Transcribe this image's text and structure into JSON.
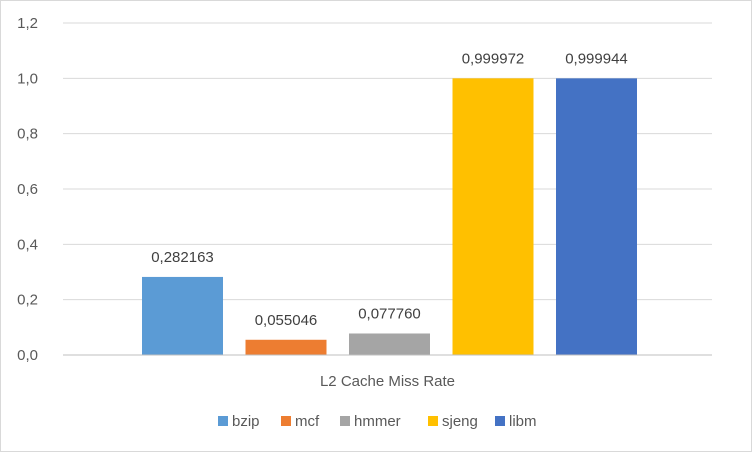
{
  "chart_data": {
    "type": "bar",
    "title": "",
    "xlabel": "",
    "ylabel": "",
    "categories": [
      "L2 Cache Miss Rate"
    ],
    "series": [
      {
        "name": "bzip",
        "values": [
          0.282163
        ],
        "label": "0,282163",
        "color": "#5B9BD5"
      },
      {
        "name": "mcf",
        "values": [
          0.055046
        ],
        "label": "0,055046",
        "color": "#ED7D31"
      },
      {
        "name": "hmmer",
        "values": [
          0.07776
        ],
        "label": "0,077760",
        "color": "#A5A5A5"
      },
      {
        "name": "sjeng",
        "values": [
          0.999972
        ],
        "label": "0,999972",
        "color": "#FFC000"
      },
      {
        "name": "libm",
        "values": [
          0.999944
        ],
        "label": "0,999944",
        "color": "#4472C4"
      }
    ],
    "ylim": [
      0,
      1.2
    ],
    "yticks": [
      {
        "value": 0.0,
        "label": "0,0"
      },
      {
        "value": 0.2,
        "label": "0,2"
      },
      {
        "value": 0.4,
        "label": "0,4"
      },
      {
        "value": 0.6,
        "label": "0,6"
      },
      {
        "value": 0.8,
        "label": "0,8"
      },
      {
        "value": 1.0,
        "label": "1,0"
      },
      {
        "value": 1.2,
        "label": "1,2"
      }
    ],
    "grid": true,
    "legend": "bottom",
    "colors": {
      "grid": "#d9d9d9",
      "axis": "#bfbfbf"
    }
  }
}
